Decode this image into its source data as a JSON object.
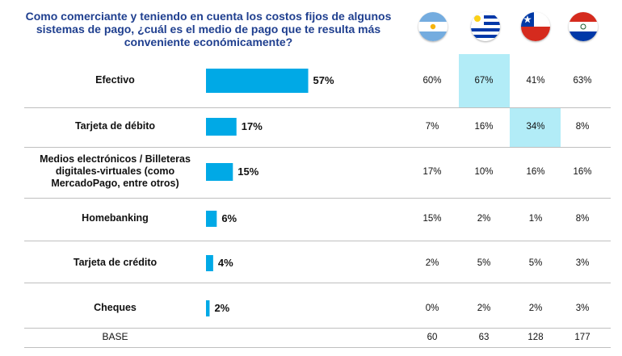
{
  "title": "Como comerciante y teniendo en cuenta los costos fijos de algunos\nsistemas de pago, ¿cuál es el medio de pago que te resulta        más\nconveniente económicamente?",
  "flags": [
    {
      "icon": "argentina-flag-icon",
      "colors": [
        "#74acdf",
        "#ffffff",
        "#f6b40e"
      ]
    },
    {
      "icon": "uruguay-flag-icon",
      "colors": [
        "#0038a8",
        "#ffffff",
        "#fcd116"
      ]
    },
    {
      "icon": "chile-flag-icon",
      "colors": [
        "#0039a6",
        "#ffffff",
        "#d52b1e"
      ]
    },
    {
      "icon": "paraguay-flag-icon",
      "colors": [
        "#d52b1e",
        "#ffffff",
        "#0038a8"
      ]
    }
  ],
  "colors": {
    "bar": "#00a9e6",
    "highlight": "#b2ecf7",
    "grid": "#bfbfbf",
    "title": "#1f3f8f"
  },
  "chart_data": {
    "type": "bar",
    "orientation": "horizontal",
    "categories": [
      "Efectivo",
      "Tarjeta de débito",
      "Medios electrónicos / Billeteras digitales-virtuales (como MercadoPago, entre otros)",
      "Homebanking",
      "Tarjeta de crédito",
      "Cheques"
    ],
    "values": [
      57,
      17,
      15,
      6,
      4,
      2
    ],
    "value_labels": [
      "57%",
      "17%",
      "15%",
      "6%",
      "4%",
      "2%"
    ],
    "xlim": [
      0,
      100
    ],
    "table": {
      "rows": [
        [
          "60%",
          "67%",
          "41%",
          "63%"
        ],
        [
          "7%",
          "16%",
          "34%",
          "8%"
        ],
        [
          "17%",
          "10%",
          "16%",
          "16%"
        ],
        [
          "15%",
          "2%",
          "1%",
          "8%"
        ],
        [
          "2%",
          "5%",
          "5%",
          "3%"
        ],
        [
          "0%",
          "2%",
          "2%",
          "3%"
        ]
      ],
      "highlighted": [
        [
          0,
          1
        ],
        [
          1,
          2
        ]
      ],
      "base_label": "BASE",
      "base": [
        "60",
        "63",
        "128",
        "177"
      ]
    }
  }
}
